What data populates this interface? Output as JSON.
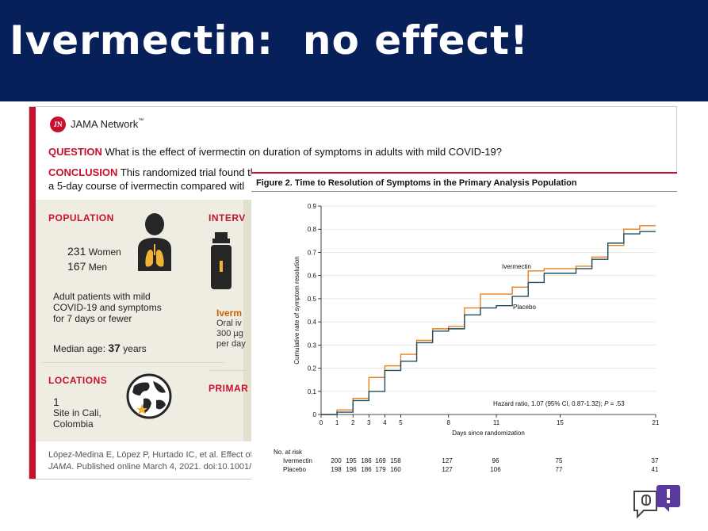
{
  "slide": {
    "title": "Ivermectin:  no effect!"
  },
  "card": {
    "brand": "JAMA Network",
    "brand_tm": "™",
    "logo_text": "JN",
    "question_label": "QUESTION",
    "question_text": " What is the effect of ivermectin on duration of symptoms in adults with mild COVID-19?",
    "conclusion_label": "CONCLUSION",
    "conclusion_line1": " This randomized trial found tl",
    "conclusion_line2": "a 5-day course of ivermectin compared witl",
    "population": {
      "heading": "POPULATION",
      "women_count": "231",
      "women_label": " Women",
      "men_count": "167",
      "men_label": " Men",
      "desc_line1": "Adult patients with mild",
      "desc_line2": "COVID-19 and symptoms",
      "desc_line3": "for 7 days or fewer",
      "median_label": "Median age: ",
      "median_value": "37",
      "median_unit": " years"
    },
    "intervention": {
      "heading": "INTERV",
      "drug": "Iverm",
      "line1": "Oral iv",
      "line2": "300 µg",
      "line3": "per day"
    },
    "locations": {
      "heading": "LOCATIONS",
      "count": "1",
      "line1": "Site in Cali,",
      "line2": "Colombia"
    },
    "primary_heading": "PRIMAR",
    "citation_line1": "López-Medina E, López P, Hurtado IC, et al. Effect of",
    "citation_journal": "JAMA",
    "citation_line2": ". Published online March 4, 2021. doi:10.1001/"
  },
  "figure": {
    "title": "Figure 2. Time to Resolution of Symptoms in the Primary Analysis Population",
    "hazard_text": "Hazard ratio, 1.07 (95% CI, 0.87-1.32); ",
    "hazard_p": "P",
    "hazard_p_value": " = .53",
    "at_risk": {
      "header": "No. at risk",
      "rows": [
        {
          "label": "Ivermectin",
          "values": [
            "200",
            "195",
            "186",
            "169",
            "158",
            "127",
            "96",
            "75",
            "37"
          ]
        },
        {
          "label": "Placebo",
          "values": [
            "198",
            "196",
            "186",
            "179",
            "160",
            "127",
            "106",
            "77",
            "41"
          ]
        }
      ]
    }
  },
  "chart_data": {
    "type": "line",
    "title": "",
    "xlabel": "Days since randomization",
    "ylabel": "Cumulative rate of symptom resolution",
    "xlim": [
      0,
      21
    ],
    "ylim": [
      0,
      0.9
    ],
    "xticks": [
      0,
      1,
      2,
      3,
      4,
      5,
      8,
      11,
      15,
      21
    ],
    "yticks": [
      0,
      0.1,
      0.2,
      0.3,
      0.4,
      0.5,
      0.6,
      0.7,
      0.8,
      0.9
    ],
    "grid": true,
    "step": true,
    "series": [
      {
        "name": "Ivermectin",
        "color": "#e8801f",
        "points": [
          [
            0,
            0
          ],
          [
            1,
            0.02
          ],
          [
            2,
            0.07
          ],
          [
            3,
            0.16
          ],
          [
            4,
            0.21
          ],
          [
            5,
            0.26
          ],
          [
            6,
            0.32
          ],
          [
            7,
            0.37
          ],
          [
            8,
            0.38
          ],
          [
            9,
            0.46
          ],
          [
            10,
            0.52
          ],
          [
            11,
            0.52
          ],
          [
            12,
            0.55
          ],
          [
            13,
            0.62
          ],
          [
            14,
            0.63
          ],
          [
            15,
            0.63
          ],
          [
            16,
            0.64
          ],
          [
            17,
            0.68
          ],
          [
            18,
            0.73
          ],
          [
            19,
            0.8
          ],
          [
            20,
            0.815
          ],
          [
            21,
            0.815
          ]
        ]
      },
      {
        "name": "Placebo",
        "color": "#1f4e5f",
        "points": [
          [
            0,
            0
          ],
          [
            1,
            0.01
          ],
          [
            2,
            0.06
          ],
          [
            3,
            0.1
          ],
          [
            4,
            0.19
          ],
          [
            5,
            0.23
          ],
          [
            6,
            0.31
          ],
          [
            7,
            0.36
          ],
          [
            8,
            0.37
          ],
          [
            9,
            0.43
          ],
          [
            10,
            0.46
          ],
          [
            11,
            0.47
          ],
          [
            12,
            0.51
          ],
          [
            13,
            0.57
          ],
          [
            14,
            0.61
          ],
          [
            15,
            0.61
          ],
          [
            16,
            0.63
          ],
          [
            17,
            0.67
          ],
          [
            18,
            0.74
          ],
          [
            19,
            0.78
          ],
          [
            20,
            0.79
          ],
          [
            21,
            0.79
          ]
        ]
      }
    ]
  }
}
